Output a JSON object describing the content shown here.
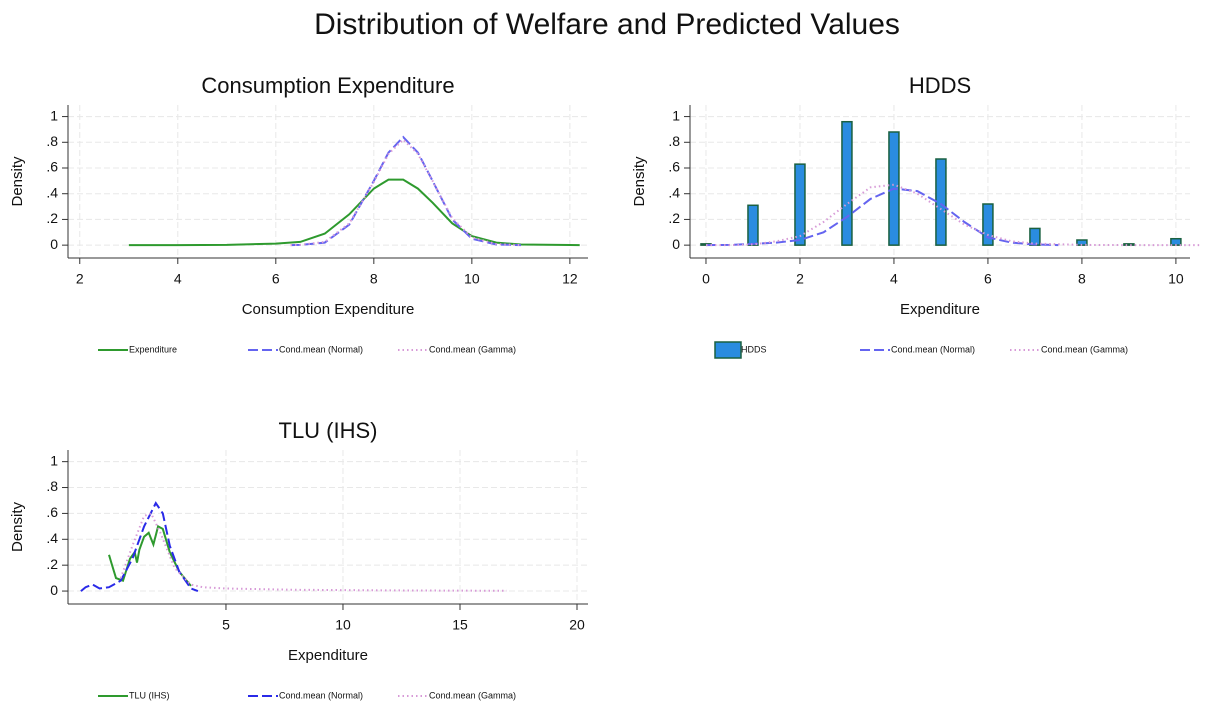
{
  "title": "Distribution of Welfare and Predicted Values",
  "chart_data": [
    {
      "type": "line",
      "title": "Consumption Expenditure",
      "xlabel": "Consumption Expenditure",
      "ylabel": "Density",
      "xlim": [
        1.76,
        12.37
      ],
      "xticks": [
        2,
        4,
        6,
        8,
        10,
        12
      ],
      "ylim": [
        -0.1,
        1.09
      ],
      "yticks": [
        0,
        {
          "value": 0.2,
          "label": ".2"
        },
        {
          "value": 0.4,
          "label": ".4"
        },
        {
          "value": 0.6,
          "label": ".6"
        },
        {
          "value": 0.8,
          "label": ".8"
        },
        1
      ],
      "grid": true,
      "series": [
        {
          "name": "Expenditure",
          "color": "#2e9a2e",
          "style": "solid",
          "x": [
            3,
            4,
            5,
            6,
            6.5,
            7,
            7.5,
            8,
            8.3,
            8.6,
            8.9,
            9.2,
            9.6,
            10,
            10.5,
            11,
            12,
            12.2
          ],
          "values": [
            0,
            0,
            0.002,
            0.012,
            0.025,
            0.09,
            0.24,
            0.44,
            0.51,
            0.51,
            0.44,
            0.33,
            0.17,
            0.07,
            0.02,
            0.005,
            0.001,
            0
          ]
        },
        {
          "name": "Cond.mean (Normal)",
          "color": "#6464f0",
          "style": "dash",
          "x": [
            6.3,
            6.5,
            7,
            7.5,
            8,
            8.3,
            8.6,
            8.9,
            9.2,
            9.6,
            10,
            10.5,
            11
          ],
          "values": [
            0,
            0.002,
            0.02,
            0.16,
            0.5,
            0.72,
            0.84,
            0.72,
            0.5,
            0.2,
            0.05,
            0.005,
            0
          ]
        },
        {
          "name": "Cond.mean (Gamma)",
          "color": "#d79ad7",
          "style": "dot",
          "x": [
            6.3,
            6.5,
            7,
            7.5,
            8,
            8.3,
            8.6,
            8.9,
            9.2,
            9.6,
            10,
            10.5,
            11
          ],
          "values": [
            0,
            0.003,
            0.025,
            0.17,
            0.49,
            0.71,
            0.82,
            0.71,
            0.5,
            0.21,
            0.06,
            0.008,
            0
          ]
        }
      ]
    },
    {
      "type": "bar",
      "title": "HDDS",
      "xlabel": "Expenditure",
      "ylabel": "Density",
      "xlim": [
        -0.34,
        10.3
      ],
      "xticks": [
        0,
        2,
        4,
        6,
        8,
        10
      ],
      "ylim": [
        -0.1,
        1.09
      ],
      "yticks": [
        0,
        {
          "value": 0.2,
          "label": ".2"
        },
        {
          "value": 0.4,
          "label": ".4"
        },
        {
          "value": 0.6,
          "label": ".6"
        },
        {
          "value": 0.8,
          "label": ".8"
        },
        1
      ],
      "grid": true,
      "series": [
        {
          "name": "HDDS",
          "color": "#2a8ce0",
          "edgecolor": "#1a6040",
          "type": "bar",
          "x": [
            0,
            1,
            2,
            3,
            4,
            5,
            6,
            7,
            8,
            9,
            10
          ],
          "values": [
            0.01,
            0.31,
            0.63,
            0.96,
            0.88,
            0.67,
            0.32,
            0.13,
            0.04,
            0.01,
            0.05
          ]
        },
        {
          "name": "Cond.mean (Normal)",
          "color": "#6464f0",
          "style": "dash",
          "type": "line",
          "x": [
            0,
            0.5,
            1,
            1.5,
            2,
            2.5,
            3,
            3.5,
            4,
            4.5,
            5,
            5.5,
            6,
            6.5,
            7,
            7.5
          ],
          "values": [
            0,
            0.002,
            0.01,
            0.02,
            0.04,
            0.1,
            0.22,
            0.36,
            0.44,
            0.42,
            0.32,
            0.18,
            0.06,
            0.02,
            0.005,
            0
          ]
        },
        {
          "name": "Cond.mean (Gamma)",
          "color": "#d79ad7",
          "style": "dot",
          "type": "line",
          "x": [
            0,
            0.5,
            1,
            1.5,
            2,
            2.5,
            3,
            3.5,
            4,
            4.5,
            5,
            5.5,
            6,
            6.5,
            7,
            8,
            9,
            10.5
          ],
          "values": [
            0,
            0,
            0.005,
            0.03,
            0.07,
            0.18,
            0.32,
            0.45,
            0.47,
            0.4,
            0.28,
            0.16,
            0.08,
            0.03,
            0.012,
            0.002,
            0,
            0
          ]
        }
      ]
    },
    {
      "type": "line",
      "title": "TLU (IHS)",
      "xlabel": "Expenditure",
      "ylabel": "Density",
      "xlim": [
        -1.75,
        20.47
      ],
      "xticks": [
        5,
        10,
        15,
        20
      ],
      "ylim": [
        -0.1,
        1.09
      ],
      "yticks": [
        0,
        {
          "value": 0.2,
          "label": ".2"
        },
        {
          "value": 0.4,
          "label": ".4"
        },
        {
          "value": 0.6,
          "label": ".6"
        },
        {
          "value": 0.8,
          "label": ".8"
        },
        1
      ],
      "grid": true,
      "series": [
        {
          "name": "TLU (IHS)",
          "color": "#2e9a2e",
          "style": "solid",
          "x": [
            0,
            0.1,
            0.3,
            0.6,
            0.9,
            1.1,
            1.2,
            1.3,
            1.5,
            1.7,
            1.9,
            2.1,
            2.3,
            2.6,
            3,
            3.5
          ],
          "values": [
            0.28,
            0.22,
            0.1,
            0.08,
            0.25,
            0.3,
            0.22,
            0.32,
            0.42,
            0.45,
            0.36,
            0.5,
            0.48,
            0.3,
            0.15,
            0.04
          ]
        },
        {
          "name": "Cond.mean (Normal)",
          "color": "#2a2ae8",
          "style": "dash",
          "x": [
            -1.2,
            -1,
            -0.7,
            -0.4,
            0,
            0.5,
            1,
            1.5,
            2,
            2.3,
            2.6,
            3,
            3.5,
            3.8
          ],
          "values": [
            0,
            0.03,
            0.05,
            0.02,
            0.03,
            0.08,
            0.25,
            0.5,
            0.68,
            0.6,
            0.35,
            0.15,
            0.02,
            0
          ]
        },
        {
          "name": "Cond.mean (Gamma)",
          "color": "#d79ad7",
          "style": "dot",
          "x": [
            0.5,
            1,
            1.5,
            1.8,
            2.2,
            2.8,
            3.5,
            4,
            5,
            8,
            12,
            17
          ],
          "values": [
            0.1,
            0.35,
            0.58,
            0.6,
            0.45,
            0.18,
            0.05,
            0.03,
            0.02,
            0.01,
            0.005,
            0.002
          ]
        }
      ]
    }
  ]
}
